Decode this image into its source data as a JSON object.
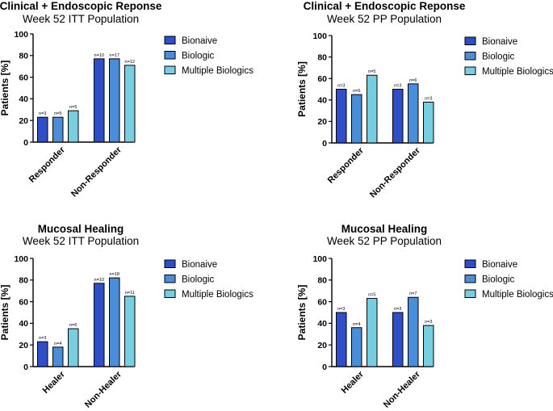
{
  "chart_data": [
    {
      "type": "bar",
      "title": "Clinical + Endoscopic Reponse",
      "subtitle": "Week 52 ITT Population",
      "xlabel": "",
      "ylabel": "Patients [%]",
      "ylim": [
        0,
        100
      ],
      "yticks": [
        "0",
        "20",
        "40",
        "60",
        "80",
        "100"
      ],
      "categories": [
        "Responder",
        "Non-Responder"
      ],
      "series": [
        {
          "name": "Bionaive",
          "color": "#2f4fc9",
          "values": [
            23,
            77
          ],
          "labels": [
            "n=3",
            "n=10"
          ]
        },
        {
          "name": "Biologic",
          "color": "#4a8ed9",
          "values": [
            23,
            77
          ],
          "labels": [
            "n=5",
            "n=17"
          ]
        },
        {
          "name": "Multiple Biologics",
          "color": "#76cee0",
          "values": [
            29,
            71
          ],
          "labels": [
            "n=5",
            "n=12"
          ]
        }
      ],
      "legend": "right"
    },
    {
      "type": "bar",
      "title": "Clinical + Endoscopic Reponse",
      "subtitle": "Week 52 PP Population",
      "xlabel": "",
      "ylabel": "Patients [%]",
      "ylim": [
        0,
        100
      ],
      "yticks": [
        "0",
        "20",
        "40",
        "60",
        "80",
        "100"
      ],
      "categories": [
        "Responder",
        "Non-Responder"
      ],
      "series": [
        {
          "name": "Bionaive",
          "color": "#2f4fc9",
          "values": [
            50,
            50
          ],
          "labels": [
            "n=3",
            "n=3"
          ]
        },
        {
          "name": "Biologic",
          "color": "#4a8ed9",
          "values": [
            45,
            55
          ],
          "labels": [
            "n=5",
            "n=6"
          ]
        },
        {
          "name": "Multiple Biologics",
          "color": "#76cee0",
          "values": [
            63,
            38
          ],
          "labels": [
            "n=5",
            "n=3"
          ]
        }
      ],
      "legend": "right"
    },
    {
      "type": "bar",
      "title": "Mucosal Healing",
      "subtitle": "Week 52 ITT Population",
      "xlabel": "",
      "ylabel": "Patients [%]",
      "ylim": [
        0,
        100
      ],
      "yticks": [
        "0",
        "20",
        "40",
        "60",
        "80",
        "100"
      ],
      "categories": [
        "Healer",
        "Non-Healer"
      ],
      "series": [
        {
          "name": "Bionaive",
          "color": "#2f4fc9",
          "values": [
            23,
            77
          ],
          "labels": [
            "n=3",
            "n=10"
          ]
        },
        {
          "name": "Biologic",
          "color": "#4a8ed9",
          "values": [
            18,
            82
          ],
          "labels": [
            "n=4",
            "n=18"
          ]
        },
        {
          "name": "Multiple Biologics",
          "color": "#76cee0",
          "values": [
            35,
            65
          ],
          "labels": [
            "n=6",
            "n=11"
          ]
        }
      ],
      "legend": "right"
    },
    {
      "type": "bar",
      "title": "Mucosal Healing",
      "subtitle": "Week 52 PP Population",
      "xlabel": "",
      "ylabel": "Patients [%]",
      "ylim": [
        0,
        100
      ],
      "yticks": [
        "0",
        "20",
        "40",
        "60",
        "80",
        "100"
      ],
      "categories": [
        "Healer",
        "Non-Healer"
      ],
      "series": [
        {
          "name": "Bionaive",
          "color": "#2f4fc9",
          "values": [
            50,
            50
          ],
          "labels": [
            "n=3",
            "n=3"
          ]
        },
        {
          "name": "Biologic",
          "color": "#4a8ed9",
          "values": [
            36,
            64
          ],
          "labels": [
            "n=4",
            "n=7"
          ]
        },
        {
          "name": "Multiple Biologics",
          "color": "#76cee0",
          "values": [
            63,
            38
          ],
          "labels": [
            "n=5",
            "n=3"
          ]
        }
      ],
      "legend": "right"
    }
  ]
}
